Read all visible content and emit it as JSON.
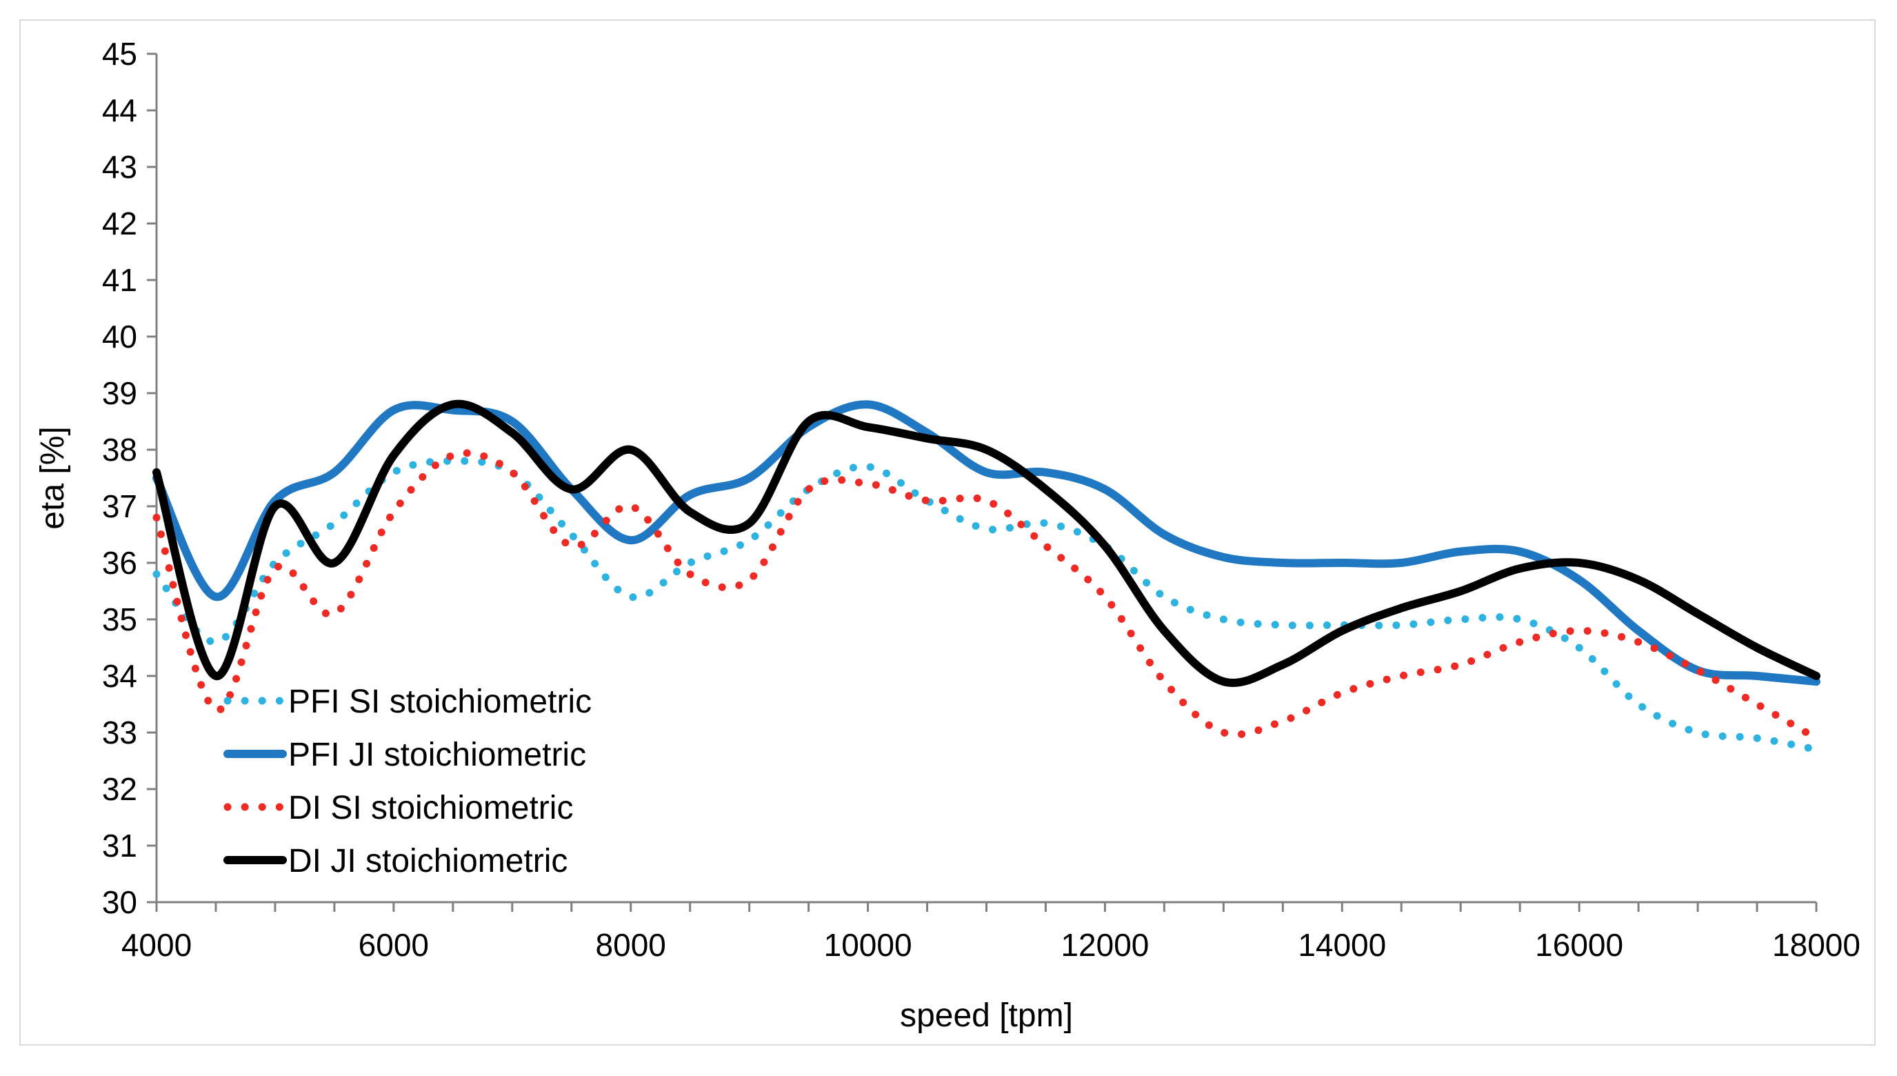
{
  "chart_data": {
    "type": "line",
    "title": "",
    "xlabel": "speed [tpm]",
    "ylabel": "eta [%]",
    "xlim": [
      4000,
      18000
    ],
    "ylim": [
      30,
      45
    ],
    "x_ticks": [
      "4000",
      "6000",
      "8000",
      "10000",
      "12000",
      "14000",
      "16000",
      "18000"
    ],
    "y_ticks": [
      "30",
      "31",
      "32",
      "33",
      "34",
      "35",
      "36",
      "37",
      "38",
      "39",
      "40",
      "41",
      "42",
      "43",
      "44",
      "45"
    ],
    "grid": false,
    "legend_position": "bottom-left",
    "series": [
      {
        "name": "PFI SI stoichiometric",
        "color": "#2eb3e0",
        "style": "dotted",
        "x": [
          4000,
          4500,
          5000,
          5500,
          6000,
          6500,
          7000,
          7500,
          8000,
          8500,
          9000,
          9500,
          10000,
          10500,
          11000,
          11500,
          12000,
          12500,
          13000,
          13500,
          14000,
          14500,
          15000,
          15500,
          16000,
          16500,
          17000,
          17500,
          18000
        ],
        "values": [
          35.8,
          34.6,
          36.0,
          36.7,
          37.6,
          37.8,
          37.6,
          36.5,
          35.4,
          36.0,
          36.4,
          37.3,
          37.7,
          37.1,
          36.6,
          36.7,
          36.3,
          35.4,
          35.0,
          34.9,
          34.9,
          34.9,
          35.0,
          35.0,
          34.5,
          33.5,
          33.0,
          32.9,
          32.7
        ]
      },
      {
        "name": "PFI JI stoichiometric",
        "color": "#1f78c1",
        "style": "solid",
        "x": [
          4000,
          4500,
          5000,
          5500,
          6000,
          6500,
          7000,
          7500,
          8000,
          8500,
          9000,
          9500,
          10000,
          10500,
          11000,
          11500,
          12000,
          12500,
          13000,
          13500,
          14000,
          14500,
          15000,
          15500,
          16000,
          16500,
          17000,
          17500,
          18000
        ],
        "values": [
          37.5,
          35.4,
          37.1,
          37.6,
          38.7,
          38.7,
          38.5,
          37.3,
          36.4,
          37.2,
          37.5,
          38.4,
          38.8,
          38.3,
          37.6,
          37.6,
          37.3,
          36.5,
          36.1,
          36.0,
          36.0,
          36.0,
          36.2,
          36.2,
          35.7,
          34.8,
          34.1,
          34.0,
          33.9
        ]
      },
      {
        "name": "DI SI stoichiometric",
        "color": "#ee2a24",
        "style": "dotted",
        "x": [
          4000,
          4500,
          5000,
          5500,
          6000,
          6500,
          7000,
          7500,
          8000,
          8500,
          9000,
          9500,
          10000,
          10500,
          11000,
          11500,
          12000,
          12500,
          13000,
          13500,
          14000,
          14500,
          15000,
          15500,
          16000,
          16500,
          17000,
          17500,
          18000
        ],
        "values": [
          36.8,
          33.4,
          35.9,
          35.1,
          36.9,
          37.9,
          37.6,
          36.3,
          37.0,
          35.8,
          35.7,
          37.3,
          37.4,
          37.1,
          37.1,
          36.3,
          35.4,
          33.9,
          33.0,
          33.2,
          33.7,
          34.0,
          34.2,
          34.6,
          34.8,
          34.6,
          34.1,
          33.5,
          32.9
        ]
      },
      {
        "name": "DI JI stoichiometric",
        "color": "#000000",
        "style": "solid",
        "x": [
          4000,
          4500,
          5000,
          5500,
          6000,
          6500,
          7000,
          7500,
          8000,
          8500,
          9000,
          9500,
          10000,
          10500,
          11000,
          11500,
          12000,
          12500,
          13000,
          13500,
          14000,
          14500,
          15000,
          15500,
          16000,
          16500,
          17000,
          17500,
          18000
        ],
        "values": [
          37.6,
          34.0,
          37.0,
          36.0,
          37.9,
          38.8,
          38.3,
          37.3,
          38.0,
          36.9,
          36.7,
          38.5,
          38.4,
          38.2,
          38.0,
          37.3,
          36.3,
          34.8,
          33.9,
          34.2,
          34.8,
          35.2,
          35.5,
          35.9,
          36.0,
          35.7,
          35.1,
          34.5,
          34.0
        ]
      }
    ]
  }
}
